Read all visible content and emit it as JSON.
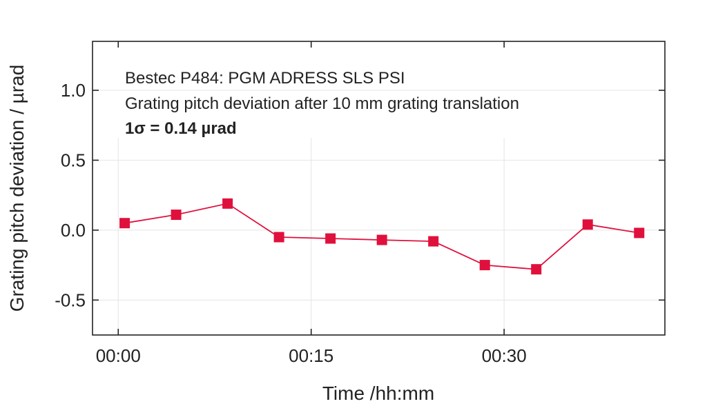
{
  "chart_data": {
    "type": "line",
    "xlabel": "Time /hh:mm",
    "ylabel": "Grating pitch deviation / µrad",
    "xlim": [
      -2,
      42.5
    ],
    "ylim": [
      -0.75,
      1.35
    ],
    "x_ticks": [
      {
        "value": 0,
        "label": "00:00"
      },
      {
        "value": 15,
        "label": "00:15"
      },
      {
        "value": 30,
        "label": "00:30"
      }
    ],
    "y_ticks": [
      {
        "value": 1.0,
        "label": "1.0"
      },
      {
        "value": 0.5,
        "label": "0.5"
      },
      {
        "value": 0.0,
        "label": "0.0"
      },
      {
        "value": -0.5,
        "label": "-0.5"
      }
    ],
    "grid": true,
    "series": [
      {
        "color": "#e0103c",
        "marker": "square",
        "x": [
          0.5,
          4.5,
          8.5,
          12.5,
          16.5,
          20.5,
          24.5,
          28.5,
          32.5,
          36.5,
          40.5
        ],
        "y": [
          0.05,
          0.11,
          0.19,
          -0.05,
          -0.06,
          -0.07,
          -0.08,
          -0.25,
          -0.28,
          0.04,
          -0.02
        ]
      }
    ],
    "annotations": [
      {
        "text": "Bestec P484: PGM ADRESS SLS PSI",
        "bold": false
      },
      {
        "text": "Grating pitch deviation after 10 mm grating translation",
        "bold": false
      },
      {
        "text": "1σ = 0.14 µrad",
        "bold": true
      }
    ]
  }
}
